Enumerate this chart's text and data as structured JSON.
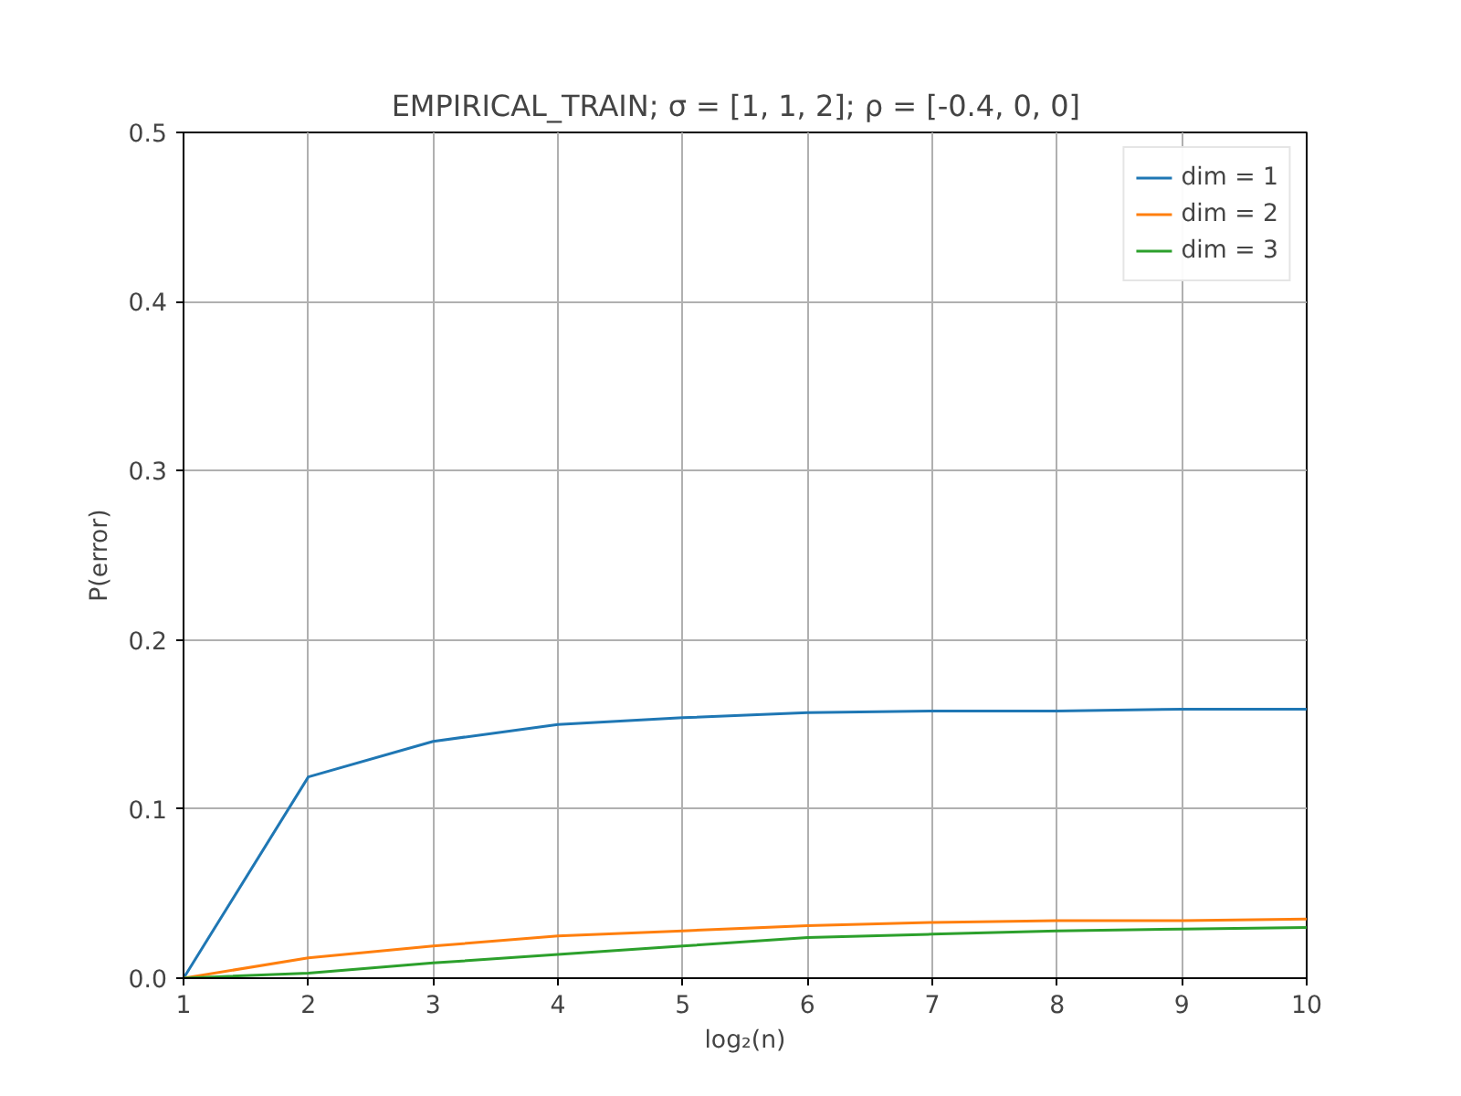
{
  "chart_data": {
    "type": "line",
    "title": "EMPIRICAL_TRAIN;  σ = [1, 1, 2];  ρ = [-0.4, 0, 0]",
    "xlabel": "log₂(n)",
    "ylabel": "P(error)",
    "x": [
      1,
      2,
      3,
      4,
      5,
      6,
      7,
      8,
      9,
      10
    ],
    "series": [
      {
        "name": "dim = 1",
        "color": "#1f77b4",
        "values": [
          0,
          0.119,
          0.14,
          0.15,
          0.154,
          0.157,
          0.158,
          0.158,
          0.159,
          0.159
        ]
      },
      {
        "name": "dim = 2",
        "color": "#ff7f0e",
        "values": [
          0,
          0.012,
          0.019,
          0.025,
          0.028,
          0.031,
          0.033,
          0.034,
          0.034,
          0.035
        ]
      },
      {
        "name": "dim = 3",
        "color": "#2ca02c",
        "values": [
          0,
          0.003,
          0.009,
          0.014,
          0.019,
          0.024,
          0.026,
          0.028,
          0.029,
          0.03
        ]
      }
    ],
    "xlim": [
      1,
      10
    ],
    "ylim": [
      0,
      0.5
    ],
    "xticks": [
      1,
      2,
      3,
      4,
      5,
      6,
      7,
      8,
      9,
      10
    ],
    "yticks": [
      {
        "value": 0,
        "label": "0.0"
      },
      0.1,
      0.2,
      0.3,
      0.4,
      0.5
    ],
    "grid": true,
    "legend": "top right",
    "line_style": "solid"
  }
}
